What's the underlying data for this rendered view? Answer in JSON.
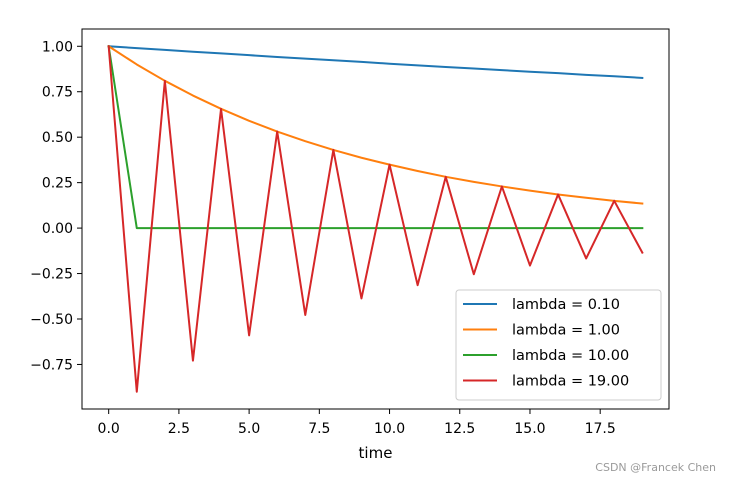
{
  "watermark": "CSDN @Francek Chen",
  "chart_data": {
    "type": "line",
    "title": "",
    "xlabel": "time",
    "ylabel": "",
    "xlim": [
      -0.95,
      19.95
    ],
    "ylim": [
      -0.995,
      1.095
    ],
    "xticks": [
      0,
      2.5,
      5,
      7.5,
      10,
      12.5,
      15,
      17.5
    ],
    "xtick_labels": [
      "0.0",
      "2.5",
      "5.0",
      "7.5",
      "10.0",
      "12.5",
      "15.0",
      "17.5"
    ],
    "yticks": [
      1.0,
      0.75,
      0.5,
      0.25,
      0.0,
      -0.25,
      -0.5,
      -0.75
    ],
    "ytick_labels": [
      "1.00",
      "0.75",
      "0.50",
      "0.25",
      "0.00",
      "−0.25",
      "−0.50",
      "−0.75"
    ],
    "grid": false,
    "legend_position": "lower-right",
    "x": [
      0,
      1,
      2,
      3,
      4,
      5,
      6,
      7,
      8,
      9,
      10,
      11,
      12,
      13,
      14,
      15,
      16,
      17,
      18,
      19
    ],
    "series": [
      {
        "name": "lambda = 0.10",
        "color": "#1f77b4",
        "values": [
          1.0,
          0.99,
          0.98,
          0.97,
          0.961,
          0.951,
          0.941,
          0.932,
          0.923,
          0.914,
          0.904,
          0.895,
          0.886,
          0.878,
          0.869,
          0.86,
          0.852,
          0.843,
          0.835,
          0.826
        ]
      },
      {
        "name": "lambda = 1.00",
        "color": "#ff7f0e",
        "values": [
          1.0,
          0.9,
          0.81,
          0.729,
          0.656,
          0.59,
          0.531,
          0.478,
          0.43,
          0.387,
          0.349,
          0.314,
          0.282,
          0.254,
          0.229,
          0.206,
          0.185,
          0.167,
          0.15,
          0.135
        ]
      },
      {
        "name": "lambda = 10.00",
        "color": "#2ca02c",
        "values": [
          1.0,
          0,
          0,
          0,
          0,
          0,
          0,
          0,
          0,
          0,
          0,
          0,
          0,
          0,
          0,
          0,
          0,
          0,
          0,
          0
        ]
      },
      {
        "name": "lambda = 19.00",
        "color": "#d62728",
        "values": [
          1.0,
          -0.9,
          0.81,
          -0.729,
          0.656,
          -0.59,
          0.531,
          -0.478,
          0.43,
          -0.387,
          0.349,
          -0.314,
          0.282,
          -0.254,
          0.229,
          -0.206,
          0.185,
          -0.167,
          0.15,
          -0.135
        ]
      }
    ]
  }
}
